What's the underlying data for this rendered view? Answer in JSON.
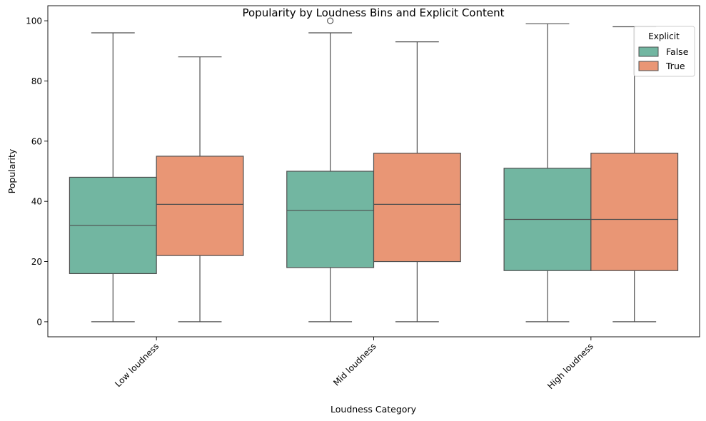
{
  "chart_data": {
    "type": "box",
    "title": "Popularity by Loudness Bins and Explicit Content",
    "xlabel": "Loudness Category",
    "ylabel": "Popularity",
    "categories": [
      "Low loudness",
      "Mid loudness",
      "High loudness"
    ],
    "ylim": [
      -5,
      105
    ],
    "yticks": [
      0,
      20,
      40,
      60,
      80,
      100
    ],
    "grid": false,
    "legend": {
      "title": "Explicit",
      "placement": "top-right"
    },
    "series": [
      {
        "name": "False",
        "color": "#72b6a1",
        "boxes": [
          {
            "whisker_low": 0,
            "q1": 16,
            "median": 32,
            "q3": 48,
            "whisker_high": 96,
            "outliers": []
          },
          {
            "whisker_low": 0,
            "q1": 18,
            "median": 37,
            "q3": 50,
            "whisker_high": 96,
            "outliers": [
              100
            ]
          },
          {
            "whisker_low": 0,
            "q1": 17,
            "median": 34,
            "q3": 51,
            "whisker_high": 99,
            "outliers": []
          }
        ]
      },
      {
        "name": "True",
        "color": "#e99675",
        "boxes": [
          {
            "whisker_low": 0,
            "q1": 22,
            "median": 39,
            "q3": 55,
            "whisker_high": 88,
            "outliers": []
          },
          {
            "whisker_low": 0,
            "q1": 20,
            "median": 39,
            "q3": 56,
            "whisker_high": 93,
            "outliers": []
          },
          {
            "whisker_low": 0,
            "q1": 17,
            "median": 34,
            "q3": 56,
            "whisker_high": 98,
            "outliers": []
          }
        ]
      }
    ]
  }
}
